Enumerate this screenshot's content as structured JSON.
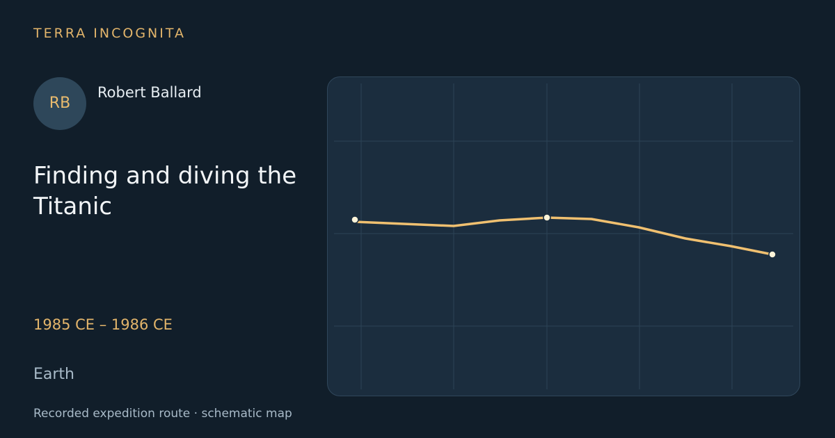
{
  "brand": "TERRA INCOGNITA",
  "person": {
    "initials": "RB",
    "name": "Robert Ballard"
  },
  "title": "Finding and diving the Titanic",
  "dates": "1985 CE – 1986 CE",
  "location": "Earth",
  "footer": "Recorded expedition route · schematic map"
}
